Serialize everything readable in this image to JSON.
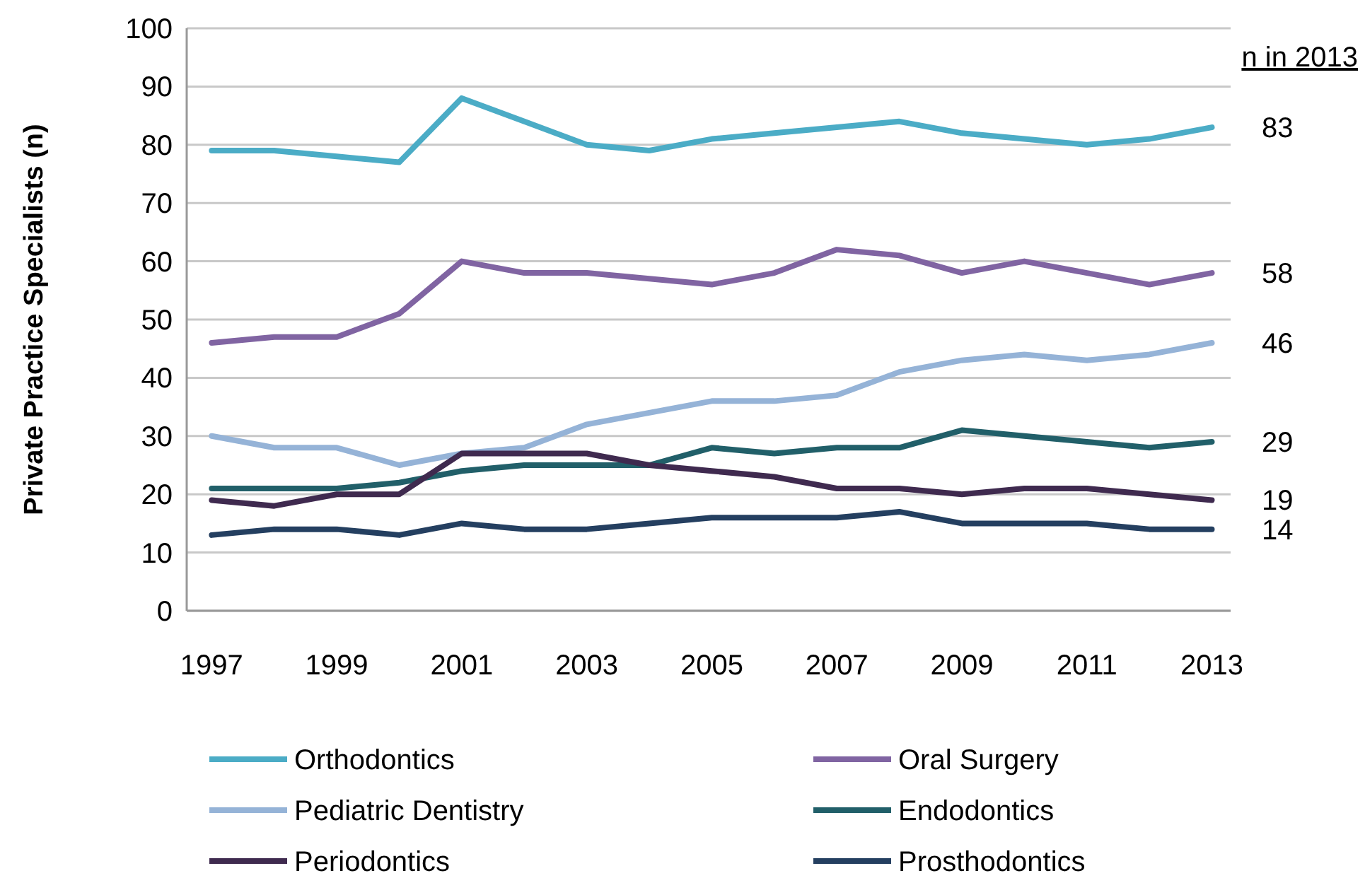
{
  "chart_data": {
    "type": "line",
    "ylabel": "Private Practice Specialists (n)",
    "x": [
      1997,
      1998,
      1999,
      2000,
      2001,
      2002,
      2003,
      2004,
      2005,
      2006,
      2007,
      2008,
      2009,
      2010,
      2011,
      2012,
      2013
    ],
    "xlim": [
      1996.6,
      2013.3
    ],
    "xticks": [
      1997,
      1999,
      2001,
      2003,
      2005,
      2007,
      2009,
      2011,
      2013
    ],
    "ylim": [
      0,
      100
    ],
    "yticks": [
      0,
      10,
      20,
      30,
      40,
      50,
      60,
      70,
      80,
      90,
      100
    ],
    "grid": "y",
    "legend": "bottom",
    "line_style": "solid",
    "marker": "none",
    "series": [
      {
        "name": "Orthodontics",
        "color": "#4bacc6",
        "values": [
          79,
          79,
          78,
          77,
          88,
          84,
          80,
          79,
          81,
          82,
          83,
          84,
          82,
          81,
          80,
          81,
          83
        ]
      },
      {
        "name": "Oral Surgery",
        "color": "#8064a2",
        "values": [
          46,
          47,
          47,
          51,
          60,
          58,
          58,
          57,
          56,
          58,
          62,
          61,
          58,
          60,
          58,
          56,
          58
        ]
      },
      {
        "name": "Pediatric Dentistry",
        "color": "#95b3d7",
        "values": [
          30,
          28,
          28,
          25,
          27,
          28,
          32,
          34,
          36,
          36,
          37,
          41,
          43,
          44,
          43,
          44,
          46
        ]
      },
      {
        "name": "Endodontics",
        "color": "#215f69",
        "values": [
          21,
          21,
          21,
          22,
          24,
          25,
          25,
          25,
          28,
          27,
          28,
          28,
          31,
          30,
          29,
          28,
          29
        ]
      },
      {
        "name": "Periodontics",
        "color": "#3f2a4f",
        "values": [
          19,
          18,
          20,
          20,
          27,
          27,
          27,
          25,
          24,
          23,
          21,
          21,
          20,
          21,
          21,
          20,
          19
        ]
      },
      {
        "name": "Prosthodontics",
        "color": "#243f60",
        "values": [
          13,
          14,
          14,
          13,
          15,
          14,
          14,
          15,
          16,
          16,
          16,
          17,
          15,
          15,
          15,
          14,
          14
        ]
      }
    ],
    "annotations": [
      "n in 2013",
      "83",
      "58",
      "46",
      "29",
      "19",
      "14"
    ]
  }
}
